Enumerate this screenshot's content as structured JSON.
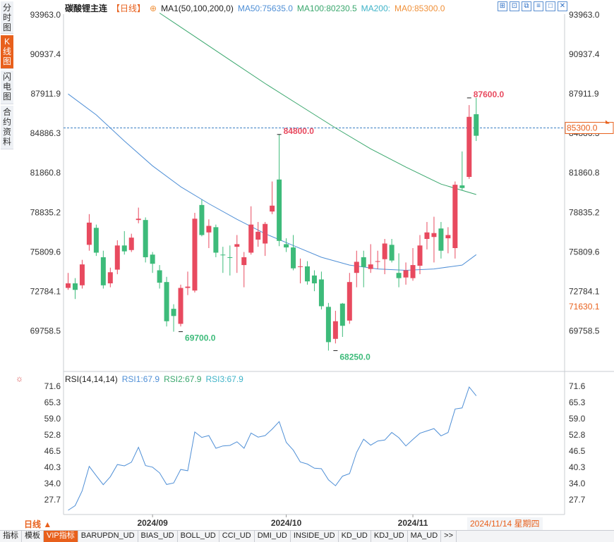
{
  "sidebar": {
    "tabs": [
      {
        "label": "分时图",
        "active": false
      },
      {
        "label": "K线图",
        "active": true
      },
      {
        "label": "闪电图",
        "active": false
      },
      {
        "label": "合约资料",
        "active": false
      }
    ]
  },
  "header": {
    "title": "碳酸锂主连",
    "period": "【日线】",
    "ma1": "MA1(50,100,200,0)",
    "ma50": "MA50:75635.0",
    "ma100": "MA100:80230.5",
    "ma200": "MA200:",
    "ma0": "MA0:85300.0"
  },
  "toolbar": {
    "icons": [
      "expand-icon",
      "fit-icon",
      "restore-icon",
      "bars-icon",
      "window-icon",
      "close-icon"
    ]
  },
  "rsi_header": {
    "name": "RSI(14,14,14)",
    "rsi1": "RSI1:67.9",
    "rsi2": "RSI2:67.9",
    "rsi3": "RSI3:67.9"
  },
  "footer": {
    "period_label": "日线 ▲",
    "date_badge": "2024/11/14 星期四",
    "tabs": [
      "指标",
      "模板",
      "VIP指标",
      "BARUPDN_UD",
      "BIAS_UD",
      "BOLL_UD",
      "CCI_UD",
      "DMI_UD",
      "INSIDE_UD",
      "KD_UD",
      "KDJ_UD",
      "MA_UD",
      ">>"
    ]
  },
  "colors": {
    "up": "#e84a5f",
    "down": "#3dbb7a",
    "ma50": "#4f8fd6",
    "ma100": "#3aa76d",
    "rsi": "#4f8fd6",
    "accent": "#e8601c"
  },
  "chart_data": [
    {
      "type": "candlestick",
      "title": "碳酸锂主连",
      "y_ticks": [
        93963.0,
        90937.4,
        87911.9,
        84886.3,
        81860.8,
        78835.2,
        75809.6,
        72784.1,
        69758.5
      ],
      "x_ticks": [
        {
          "label": "2024/09",
          "index": 12
        },
        {
          "label": "2024/10",
          "index": 31
        },
        {
          "label": "2024/11",
          "index": 49
        }
      ],
      "reference_lines": [
        {
          "value": 85300.0,
          "label": "85300.0"
        }
      ],
      "right_axis_labels": [
        {
          "value": 71630.1,
          "label": "71630.1"
        }
      ],
      "annotations": [
        {
          "index": 16,
          "value": 69700.0,
          "label": "69700.0"
        },
        {
          "index": 30,
          "value": 84800.0,
          "label": "84800.0"
        },
        {
          "index": 38,
          "value": 68250.0,
          "label": "68250.0"
        },
        {
          "index": 57,
          "value": 87600.0,
          "label": "87600.0"
        }
      ],
      "ylim": [
        68200,
        94200
      ],
      "candles": [
        [
          73050,
          73400,
          74200,
          72900
        ],
        [
          73400,
          72900,
          73800,
          72200
        ],
        [
          73250,
          74850,
          75200,
          73000
        ],
        [
          76350,
          78050,
          78700,
          75900
        ],
        [
          77650,
          75750,
          77900,
          75500
        ],
        [
          75400,
          73250,
          75900,
          73000
        ],
        [
          73400,
          74250,
          74600,
          73100
        ],
        [
          74450,
          76300,
          76700,
          74100
        ],
        [
          76300,
          75850,
          77400,
          75600
        ],
        [
          75950,
          76900,
          77200,
          75800
        ],
        [
          78250,
          78350,
          79200,
          78000
        ],
        [
          78250,
          75400,
          78450,
          75000
        ],
        [
          75600,
          74900,
          75800,
          74200
        ],
        [
          74400,
          73450,
          74800,
          73000
        ],
        [
          73500,
          70500,
          73900,
          70100
        ],
        [
          71450,
          70900,
          71800,
          69700
        ],
        [
          70300,
          73050,
          73300,
          70100
        ],
        [
          73050,
          73150,
          74300,
          72500
        ],
        [
          72850,
          78350,
          78800,
          72700
        ],
        [
          79400,
          77100,
          79800,
          77000
        ],
        [
          77300,
          77800,
          78300,
          76100
        ],
        [
          77700,
          75750,
          77900,
          75400
        ],
        [
          75600,
          75550,
          76200,
          74200
        ],
        [
          75400,
          75350,
          76300,
          74000
        ],
        [
          76200,
          76400,
          77100,
          74200
        ],
        [
          74800,
          75400,
          75800,
          73100
        ],
        [
          75750,
          77900,
          79300,
          75600
        ],
        [
          76750,
          77350,
          78100,
          76200
        ],
        [
          76450,
          77950,
          78100,
          75500
        ],
        [
          78900,
          79350,
          81200,
          78700
        ],
        [
          81350,
          76650,
          84800,
          76250
        ],
        [
          76400,
          76150,
          76850,
          75800
        ],
        [
          76150,
          74550,
          77100,
          74400
        ],
        [
          74650,
          74700,
          75300,
          73400
        ],
        [
          74700,
          73550,
          75100,
          73300
        ],
        [
          74000,
          73400,
          74400,
          72800
        ],
        [
          73700,
          71650,
          74300,
          71400
        ],
        [
          71600,
          68900,
          71900,
          68250
        ],
        [
          69150,
          70500,
          71300,
          68800
        ],
        [
          71850,
          70150,
          71900,
          69300
        ],
        [
          70550,
          73500,
          74200,
          70300
        ],
        [
          74200,
          75050,
          75900,
          73100
        ],
        [
          75400,
          74650,
          75900,
          73100
        ],
        [
          74500,
          74850,
          76400,
          74200
        ],
        [
          75050,
          75100,
          75900,
          74500
        ],
        [
          75250,
          76450,
          76800,
          74100
        ],
        [
          76350,
          75150,
          76800,
          75000
        ],
        [
          74200,
          73800,
          75700,
          73100
        ],
        [
          73850,
          74400,
          75000,
          73300
        ],
        [
          73800,
          74800,
          76100,
          73600
        ],
        [
          74750,
          76300,
          77100,
          74100
        ],
        [
          76800,
          77300,
          78100,
          76000
        ],
        [
          76950,
          77250,
          78500,
          75000
        ],
        [
          77600,
          75900,
          78100,
          75300
        ],
        [
          76850,
          77100,
          77700,
          75700
        ],
        [
          76100,
          80950,
          81200,
          75300
        ],
        [
          80900,
          80700,
          83500,
          80500
        ],
        [
          81550,
          86150,
          87050,
          81400
        ],
        [
          86350,
          84700,
          87600,
          84300
        ]
      ],
      "series": [
        {
          "name": "MA50",
          "x": [
            0,
            4,
            8,
            12,
            16,
            20,
            24,
            28,
            32,
            36,
            40,
            44,
            48,
            52,
            56,
            58
          ],
          "values": [
            87900,
            86300,
            84300,
            82400,
            80800,
            79500,
            78300,
            77200,
            76300,
            75400,
            74800,
            74500,
            74400,
            74500,
            74800,
            75600
          ]
        },
        {
          "name": "MA100",
          "x": [
            13,
            18,
            23,
            28,
            33,
            38,
            43,
            48,
            53,
            58
          ],
          "values": [
            94100,
            92300,
            90500,
            88700,
            87000,
            85300,
            83700,
            82300,
            81000,
            80200
          ]
        }
      ]
    },
    {
      "type": "line",
      "title": "RSI(14,14,14)",
      "y_ticks": [
        71.6,
        65.3,
        59.0,
        52.8,
        46.5,
        40.3,
        34.0,
        27.7
      ],
      "ylim": [
        23.0,
        73.5
      ],
      "series": [
        {
          "name": "RSI1",
          "values": [
            23.6,
            25.4,
            31.1,
            40.6,
            37.0,
            33.5,
            36.6,
            41.3,
            40.8,
            42.2,
            48.0,
            40.9,
            40.3,
            38.1,
            33.6,
            34.2,
            39.4,
            38.9,
            53.9,
            51.8,
            52.5,
            47.6,
            48.5,
            48.7,
            50.1,
            47.6,
            53.5,
            51.9,
            52.5,
            55.0,
            57.9,
            49.9,
            46.9,
            42.3,
            41.5,
            39.9,
            39.7,
            35.4,
            33.1,
            36.8,
            37.8,
            46.0,
            51.1,
            48.8,
            50.4,
            50.8,
            53.7,
            51.7,
            48.5,
            51.0,
            53.4,
            54.3,
            55.2,
            52.4,
            53.7,
            62.8,
            63.2,
            71.3,
            67.9
          ]
        }
      ]
    }
  ]
}
